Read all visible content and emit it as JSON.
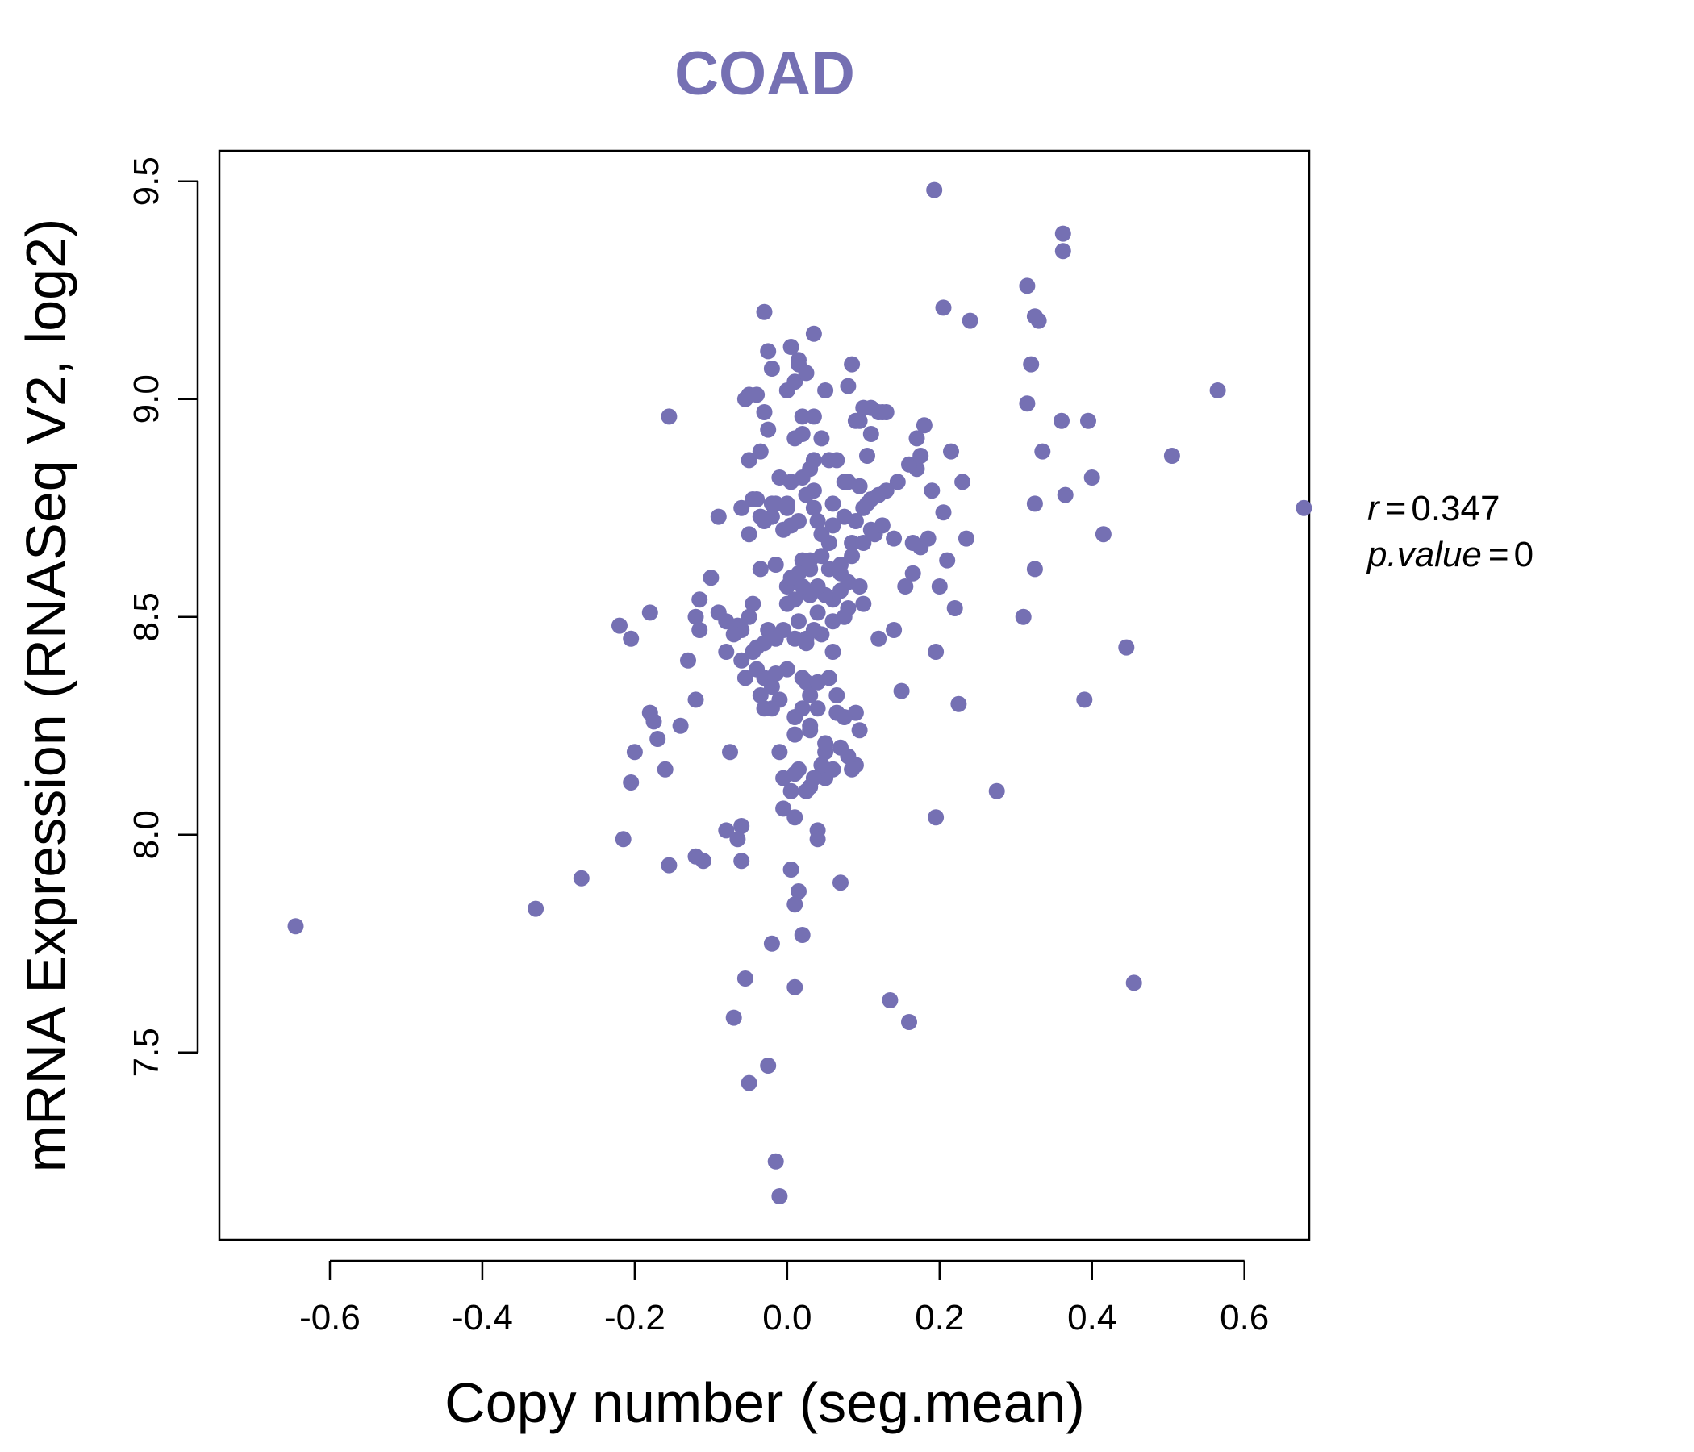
{
  "chart_data": {
    "type": "scatter",
    "title": "COAD",
    "xlabel": "Copy number (seg.mean)",
    "ylabel": "mRNA Expression (RNASeq V2, log2)",
    "xlim": [
      -0.745,
      0.685
    ],
    "ylim": [
      7.07,
      9.57
    ],
    "xticks": [
      "-0.6",
      "-0.4",
      "-0.2",
      "0.0",
      "0.2",
      "0.4",
      "0.6"
    ],
    "xtick_values": [
      -0.6,
      -0.4,
      -0.2,
      0.0,
      0.2,
      0.4,
      0.6
    ],
    "yticks": [
      "7.5",
      "8.0",
      "8.5",
      "9.0",
      "9.5"
    ],
    "ytick_values": [
      7.5,
      8.0,
      8.5,
      9.0,
      9.5
    ],
    "color": "#7570b3",
    "r_label": "r",
    "r_value": "0.347",
    "p_label": "p.value",
    "p_value": "0",
    "points": [
      [
        -0.645,
        7.79
      ],
      [
        -0.33,
        7.83
      ],
      [
        -0.27,
        7.9
      ],
      [
        -0.22,
        8.48
      ],
      [
        -0.215,
        7.99
      ],
      [
        -0.205,
        8.45
      ],
      [
        -0.205,
        8.12
      ],
      [
        -0.2,
        8.19
      ],
      [
        -0.18,
        8.51
      ],
      [
        -0.18,
        8.28
      ],
      [
        -0.175,
        8.26
      ],
      [
        -0.17,
        8.22
      ],
      [
        -0.16,
        8.15
      ],
      [
        -0.155,
        7.93
      ],
      [
        -0.155,
        8.96
      ],
      [
        -0.14,
        8.25
      ],
      [
        -0.13,
        8.4
      ],
      [
        -0.12,
        8.31
      ],
      [
        -0.12,
        8.5
      ],
      [
        -0.12,
        7.95
      ],
      [
        -0.115,
        8.54
      ],
      [
        -0.115,
        8.47
      ],
      [
        -0.11,
        7.94
      ],
      [
        -0.1,
        8.59
      ],
      [
        -0.09,
        8.51
      ],
      [
        -0.09,
        8.73
      ],
      [
        -0.08,
        8.42
      ],
      [
        -0.075,
        8.19
      ],
      [
        -0.07,
        7.58
      ],
      [
        -0.065,
        8.48
      ],
      [
        -0.06,
        8.75
      ],
      [
        -0.06,
        8.4
      ],
      [
        -0.06,
        8.47
      ],
      [
        -0.055,
        8.36
      ],
      [
        -0.055,
        7.67
      ],
      [
        -0.05,
        9.01
      ],
      [
        -0.05,
        8.86
      ],
      [
        -0.05,
        8.69
      ],
      [
        -0.045,
        8.53
      ],
      [
        -0.045,
        8.42
      ],
      [
        -0.04,
        8.77
      ],
      [
        -0.04,
        8.43
      ],
      [
        -0.035,
        8.32
      ],
      [
        -0.035,
        8.61
      ],
      [
        -0.035,
        8.88
      ],
      [
        -0.03,
        9.2
      ],
      [
        -0.03,
        8.29
      ],
      [
        -0.025,
        8.47
      ],
      [
        -0.025,
        9.11
      ],
      [
        -0.02,
        9.07
      ],
      [
        -0.02,
        8.76
      ],
      [
        -0.015,
        8.62
      ],
      [
        -0.015,
        8.45
      ],
      [
        -0.01,
        8.82
      ],
      [
        -0.01,
        8.19
      ],
      [
        -0.005,
        8.13
      ],
      [
        -0.005,
        8.06
      ],
      [
        0.0,
        8.57
      ],
      [
        0.0,
        8.76
      ],
      [
        0.005,
        7.92
      ],
      [
        0.005,
        8.81
      ],
      [
        0.01,
        8.04
      ],
      [
        0.01,
        7.65
      ],
      [
        0.01,
        8.27
      ],
      [
        0.015,
        8.15
      ],
      [
        0.015,
        8.49
      ],
      [
        0.015,
        9.08
      ],
      [
        0.02,
        8.96
      ],
      [
        0.02,
        8.63
      ],
      [
        0.02,
        8.82
      ],
      [
        0.025,
        8.45
      ],
      [
        0.025,
        8.56
      ],
      [
        0.025,
        8.35
      ],
      [
        0.03,
        8.11
      ],
      [
        0.03,
        8.24
      ],
      [
        0.03,
        8.61
      ],
      [
        0.035,
        8.86
      ],
      [
        0.035,
        9.15
      ],
      [
        0.035,
        8.79
      ],
      [
        0.04,
        8.51
      ],
      [
        0.04,
        8.29
      ],
      [
        0.04,
        8.01
      ],
      [
        0.045,
        8.69
      ],
      [
        0.05,
        9.02
      ],
      [
        0.05,
        8.19
      ],
      [
        0.055,
        8.61
      ],
      [
        0.06,
        8.76
      ],
      [
        0.06,
        8.42
      ],
      [
        0.065,
        8.32
      ],
      [
        0.07,
        7.89
      ],
      [
        0.07,
        8.6
      ],
      [
        0.075,
        8.81
      ],
      [
        0.08,
        9.03
      ],
      [
        0.08,
        8.52
      ],
      [
        0.085,
        8.67
      ],
      [
        0.09,
        8.16
      ],
      [
        0.095,
        8.95
      ],
      [
        0.1,
        8.53
      ],
      [
        0.105,
        8.87
      ],
      [
        0.11,
        8.7
      ],
      [
        0.12,
        8.45
      ],
      [
        0.13,
        8.97
      ],
      [
        0.135,
        7.62
      ],
      [
        0.14,
        8.47
      ],
      [
        0.15,
        8.33
      ],
      [
        0.16,
        7.57
      ],
      [
        0.165,
        8.6
      ],
      [
        0.17,
        8.84
      ],
      [
        0.175,
        8.66
      ],
      [
        0.18,
        8.94
      ],
      [
        0.19,
        8.79
      ],
      [
        0.193,
        9.48
      ],
      [
        0.195,
        8.42
      ],
      [
        0.195,
        8.04
      ],
      [
        0.2,
        8.57
      ],
      [
        0.205,
        9.21
      ],
      [
        0.205,
        8.74
      ],
      [
        0.21,
        8.63
      ],
      [
        0.215,
        8.88
      ],
      [
        0.22,
        8.52
      ],
      [
        0.225,
        8.3
      ],
      [
        0.23,
        8.81
      ],
      [
        0.235,
        8.68
      ],
      [
        0.24,
        9.18
      ],
      [
        0.275,
        8.1
      ],
      [
        0.31,
        8.5
      ],
      [
        0.315,
        9.26
      ],
      [
        0.315,
        8.99
      ],
      [
        0.32,
        9.08
      ],
      [
        0.325,
        9.19
      ],
      [
        0.325,
        8.76
      ],
      [
        0.325,
        8.61
      ],
      [
        0.33,
        9.18
      ],
      [
        0.335,
        8.88
      ],
      [
        0.36,
        8.95
      ],
      [
        0.362,
        9.38
      ],
      [
        0.362,
        9.34
      ],
      [
        0.365,
        8.78
      ],
      [
        0.39,
        8.31
      ],
      [
        0.395,
        8.95
      ],
      [
        0.4,
        8.82
      ],
      [
        0.415,
        8.69
      ],
      [
        0.445,
        8.43
      ],
      [
        0.455,
        7.66
      ],
      [
        0.505,
        8.87
      ],
      [
        0.565,
        9.02
      ],
      [
        0.678,
        8.75
      ],
      [
        -0.06,
        7.94
      ],
      [
        -0.06,
        8.02
      ],
      [
        -0.065,
        7.99
      ],
      [
        -0.08,
        8.01
      ],
      [
        -0.02,
        7.75
      ],
      [
        -0.05,
        7.43
      ],
      [
        -0.025,
        7.47
      ],
      [
        -0.015,
        7.25
      ],
      [
        -0.01,
        7.17
      ],
      [
        0.02,
        7.77
      ],
      [
        0.01,
        7.84
      ],
      [
        0.015,
        7.87
      ],
      [
        0.04,
        7.99
      ],
      [
        0.025,
        8.1
      ],
      [
        0.05,
        8.13
      ],
      [
        0.06,
        8.15
      ],
      [
        0.07,
        8.2
      ],
      [
        0.08,
        8.18
      ],
      [
        0.085,
        8.15
      ],
      [
        0.095,
        8.24
      ],
      [
        0.09,
        8.28
      ],
      [
        0.075,
        8.27
      ],
      [
        0.065,
        8.28
      ],
      [
        0.05,
        8.21
      ],
      [
        0.045,
        8.16
      ],
      [
        0.035,
        8.13
      ],
      [
        0.01,
        8.14
      ],
      [
        0.005,
        8.1
      ],
      [
        -0.01,
        8.31
      ],
      [
        -0.03,
        8.36
      ],
      [
        -0.02,
        8.34
      ],
      [
        0.0,
        8.38
      ],
      [
        0.02,
        8.36
      ],
      [
        0.04,
        8.35
      ],
      [
        0.045,
        8.46
      ],
      [
        0.035,
        8.47
      ],
      [
        0.025,
        8.44
      ],
      [
        0.01,
        8.45
      ],
      [
        -0.005,
        8.47
      ],
      [
        -0.015,
        8.37
      ],
      [
        -0.04,
        8.38
      ],
      [
        0.06,
        8.54
      ],
      [
        0.07,
        8.56
      ],
      [
        0.08,
        8.58
      ],
      [
        0.095,
        8.57
      ],
      [
        0.05,
        8.55
      ],
      [
        0.04,
        8.57
      ],
      [
        0.03,
        8.55
      ],
      [
        0.02,
        8.57
      ],
      [
        0.01,
        8.54
      ],
      [
        0.0,
        8.53
      ],
      [
        0.005,
        8.59
      ],
      [
        0.015,
        8.6
      ],
      [
        0.03,
        8.63
      ],
      [
        0.045,
        8.64
      ],
      [
        0.055,
        8.67
      ],
      [
        0.07,
        8.62
      ],
      [
        0.085,
        8.64
      ],
      [
        0.1,
        8.67
      ],
      [
        0.115,
        8.69
      ],
      [
        0.125,
        8.71
      ],
      [
        0.14,
        8.68
      ],
      [
        0.155,
        8.57
      ],
      [
        0.165,
        8.67
      ],
      [
        0.185,
        8.68
      ],
      [
        0.11,
        8.77
      ],
      [
        0.1,
        8.75
      ],
      [
        0.12,
        8.78
      ],
      [
        0.095,
        8.8
      ],
      [
        0.08,
        8.81
      ],
      [
        0.065,
        8.86
      ],
      [
        0.055,
        8.86
      ],
      [
        0.045,
        8.91
      ],
      [
        0.03,
        8.84
      ],
      [
        0.025,
        8.78
      ],
      [
        0.015,
        8.72
      ],
      [
        0.005,
        8.71
      ],
      [
        -0.005,
        8.7
      ],
      [
        -0.02,
        8.73
      ],
      [
        -0.03,
        8.72
      ],
      [
        -0.035,
        8.73
      ],
      [
        -0.045,
        8.77
      ],
      [
        -0.015,
        8.76
      ],
      [
        0.0,
        8.75
      ],
      [
        0.035,
        8.75
      ],
      [
        0.04,
        8.72
      ],
      [
        0.06,
        8.71
      ],
      [
        0.075,
        8.73
      ],
      [
        0.09,
        8.72
      ],
      [
        0.105,
        8.76
      ],
      [
        0.13,
        8.79
      ],
      [
        0.145,
        8.81
      ],
      [
        0.16,
        8.85
      ],
      [
        0.175,
        8.87
      ],
      [
        0.17,
        8.91
      ],
      [
        0.11,
        8.92
      ],
      [
        0.09,
        8.95
      ],
      [
        0.1,
        8.98
      ],
      [
        0.11,
        8.98
      ],
      [
        0.12,
        8.97
      ],
      [
        0.125,
        8.97
      ],
      [
        0.035,
        8.96
      ],
      [
        0.02,
        8.92
      ],
      [
        0.01,
        8.91
      ],
      [
        -0.025,
        8.93
      ],
      [
        -0.03,
        8.97
      ],
      [
        -0.04,
        9.01
      ],
      [
        -0.055,
        9.0
      ],
      [
        0.0,
        9.02
      ],
      [
        0.01,
        9.04
      ],
      [
        0.005,
        9.12
      ],
      [
        0.015,
        9.09
      ],
      [
        0.025,
        9.06
      ],
      [
        0.085,
        9.08
      ],
      [
        -0.08,
        8.49
      ],
      [
        -0.07,
        8.46
      ],
      [
        -0.05,
        8.5
      ],
      [
        -0.03,
        8.44
      ],
      [
        0.06,
        8.49
      ],
      [
        0.075,
        8.5
      ],
      [
        0.055,
        8.36
      ],
      [
        0.03,
        8.32
      ],
      [
        -0.02,
        8.29
      ],
      [
        0.01,
        8.23
      ],
      [
        0.02,
        8.29
      ],
      [
        0.03,
        8.25
      ]
    ]
  }
}
